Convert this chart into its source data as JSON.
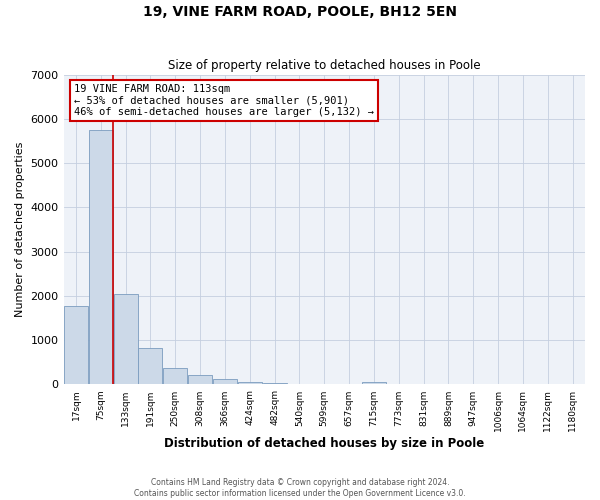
{
  "title": "19, VINE FARM ROAD, POOLE, BH12 5EN",
  "subtitle": "Size of property relative to detached houses in Poole",
  "xlabel": "Distribution of detached houses by size in Poole",
  "ylabel": "Number of detached properties",
  "bar_labels": [
    "17sqm",
    "75sqm",
    "133sqm",
    "191sqm",
    "250sqm",
    "308sqm",
    "366sqm",
    "424sqm",
    "482sqm",
    "540sqm",
    "599sqm",
    "657sqm",
    "715sqm",
    "773sqm",
    "831sqm",
    "889sqm",
    "947sqm",
    "1006sqm",
    "1064sqm",
    "1122sqm",
    "1180sqm"
  ],
  "bar_values": [
    1780,
    5750,
    2050,
    830,
    370,
    220,
    120,
    60,
    30,
    0,
    0,
    0,
    50,
    0,
    0,
    0,
    0,
    0,
    0,
    0,
    0
  ],
  "bar_color": "#ccd9e8",
  "bar_edge_color": "#7a9cbf",
  "grid_color": "#c5cfe0",
  "background_color": "#eef2f8",
  "red_line_index": 2,
  "annotation_line1": "19 VINE FARM ROAD: 113sqm",
  "annotation_line2": "← 53% of detached houses are smaller (5,901)",
  "annotation_line3": "46% of semi-detached houses are larger (5,132) →",
  "annotation_box_color": "#ffffff",
  "annotation_border_color": "#cc0000",
  "red_line_color": "#cc0000",
  "ylim": [
    0,
    7000
  ],
  "yticks": [
    0,
    1000,
    2000,
    3000,
    4000,
    5000,
    6000,
    7000
  ],
  "footer_line1": "Contains HM Land Registry data © Crown copyright and database right 2024.",
  "footer_line2": "Contains public sector information licensed under the Open Government Licence v3.0."
}
